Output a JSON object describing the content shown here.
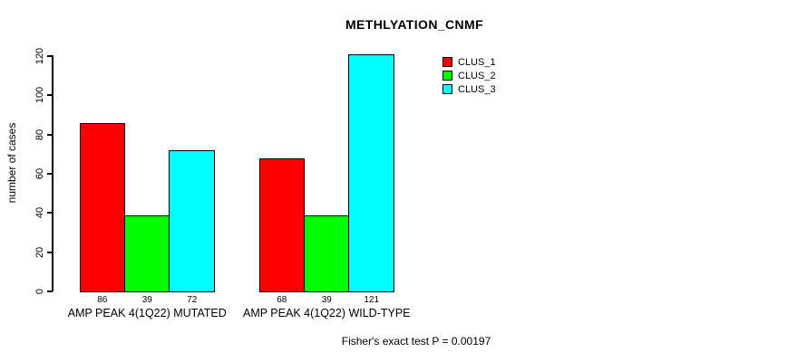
{
  "chart_data": {
    "type": "bar",
    "title": "METHLYATION_CNMF",
    "xlabel": "",
    "ylabel": "number of cases",
    "ylim": [
      0,
      120
    ],
    "yticks": [
      0,
      20,
      40,
      60,
      80,
      100,
      120
    ],
    "grid": false,
    "legend_position": "top-right",
    "categories": [
      "AMP PEAK 4(1Q22) MUTATED",
      "AMP PEAK 4(1Q22) WILD-TYPE"
    ],
    "series": [
      {
        "name": "CLUS_1",
        "color": "#ff0000",
        "values": [
          86,
          68
        ]
      },
      {
        "name": "CLUS_2",
        "color": "#00ff00",
        "values": [
          39,
          39
        ]
      },
      {
        "name": "CLUS_3",
        "color": "#00ffff",
        "values": [
          72,
          121
        ]
      }
    ],
    "bar_value_labels_shown": true,
    "annotation": "Fisher's exact test P = 0.00197",
    "colors": {
      "background": "#ffffff",
      "axis": "#000000",
      "bar_border": "#000000",
      "text": "#000000"
    }
  }
}
